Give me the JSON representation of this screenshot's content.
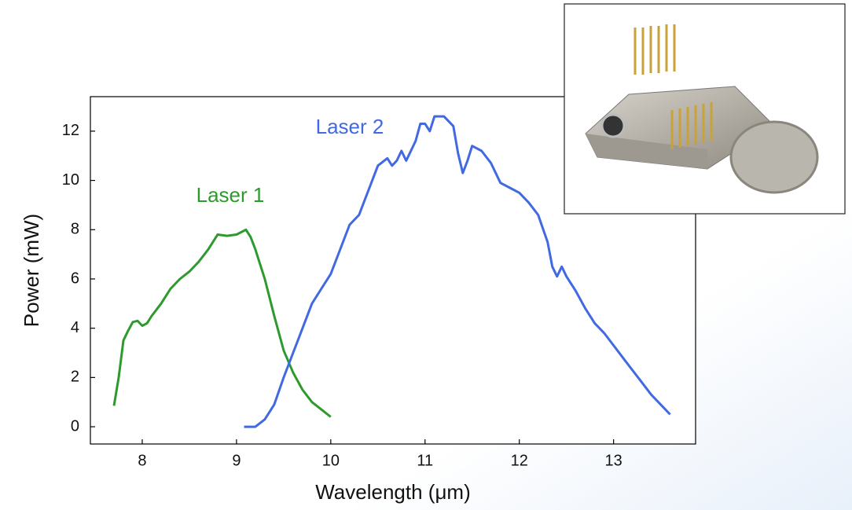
{
  "chart_data": {
    "type": "line",
    "x_label": "Wavelength (μm)",
    "y_label": "Power (mW)",
    "xlim": [
      7.45,
      13.87
    ],
    "ylim": [
      -0.7,
      13.4
    ],
    "xticks": [
      8,
      9,
      10,
      11,
      12,
      13
    ],
    "yticks": [
      0,
      2,
      4,
      6,
      8,
      10,
      12
    ],
    "annotations": [
      "Laser 1",
      "Laser 2"
    ],
    "series": [
      {
        "name": "Laser 1",
        "color": "#2e9a2e",
        "x": [
          7.7,
          7.75,
          7.8,
          7.85,
          7.9,
          7.95,
          8.0,
          8.05,
          8.1,
          8.2,
          8.3,
          8.4,
          8.5,
          8.6,
          8.7,
          8.8,
          8.9,
          9.0,
          9.1,
          9.15,
          9.2,
          9.3,
          9.4,
          9.5,
          9.6,
          9.7,
          9.8,
          9.9,
          10.0
        ],
        "values": [
          0.85,
          2,
          3.5,
          3.9,
          4.25,
          4.3,
          4.1,
          4.2,
          4.5,
          5.0,
          5.6,
          6.0,
          6.3,
          6.7,
          7.2,
          7.8,
          7.75,
          7.8,
          8.0,
          7.7,
          7.2,
          6.0,
          4.5,
          3.1,
          2.2,
          1.5,
          1.0,
          0.7,
          0.4
        ]
      },
      {
        "name": "Laser 2",
        "color": "#4169e1",
        "x": [
          9.08,
          9.2,
          9.3,
          9.4,
          9.5,
          9.6,
          9.7,
          9.8,
          9.9,
          10.0,
          10.1,
          10.2,
          10.3,
          10.4,
          10.5,
          10.6,
          10.65,
          10.7,
          10.75,
          10.8,
          10.9,
          10.95,
          11.0,
          11.05,
          11.1,
          11.2,
          11.3,
          11.35,
          11.4,
          11.45,
          11.5,
          11.6,
          11.7,
          11.8,
          11.9,
          12.0,
          12.1,
          12.2,
          12.3,
          12.35,
          12.4,
          12.45,
          12.5,
          12.6,
          12.7,
          12.8,
          12.9,
          13.0,
          13.1,
          13.2,
          13.3,
          13.4,
          13.5,
          13.6
        ],
        "values": [
          0,
          0,
          0.3,
          0.9,
          2,
          3,
          4,
          5,
          5.6,
          6.2,
          7.2,
          8.2,
          8.6,
          9.6,
          10.6,
          10.9,
          10.6,
          10.8,
          11.2,
          10.8,
          11.6,
          12.3,
          12.3,
          12.0,
          12.6,
          12.6,
          12.2,
          11.1,
          10.3,
          10.8,
          11.4,
          11.2,
          10.7,
          9.9,
          9.7,
          9.5,
          9.1,
          8.6,
          7.5,
          6.5,
          6.1,
          6.5,
          6.1,
          5.5,
          4.8,
          4.2,
          3.8,
          3.3,
          2.8,
          2.3,
          1.8,
          1.3,
          0.9,
          0.5
        ]
      }
    ]
  }
}
